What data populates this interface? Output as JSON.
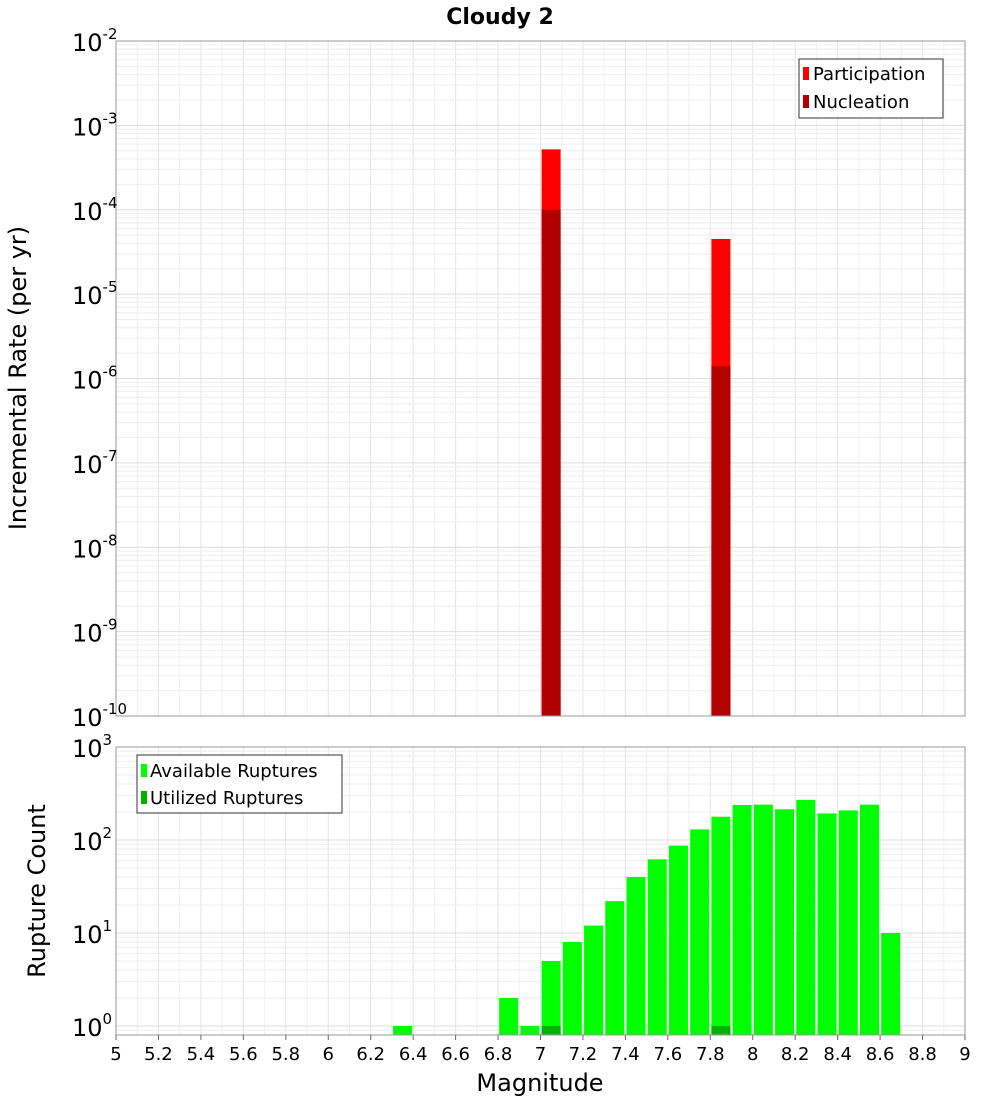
{
  "title": "Cloudy 2",
  "chart_data": [
    {
      "type": "bar",
      "panel": "top",
      "ylabel": "Incremental Rate (per yr)",
      "yscale": "log",
      "ylim": [
        1e-10,
        0.01
      ],
      "xlim": [
        5,
        9
      ],
      "grid": true,
      "legend_position": "top-right",
      "yticks": [
        {
          "base": "10",
          "exp": "-2",
          "value": 0.01
        },
        {
          "base": "10",
          "exp": "-3",
          "value": 0.001
        },
        {
          "base": "10",
          "exp": "-4",
          "value": 0.0001
        },
        {
          "base": "10",
          "exp": "-5",
          "value": 1e-05
        },
        {
          "base": "10",
          "exp": "-6",
          "value": 1e-06
        },
        {
          "base": "10",
          "exp": "-7",
          "value": 1e-07
        },
        {
          "base": "10",
          "exp": "-8",
          "value": 1e-08
        },
        {
          "base": "10",
          "exp": "-9",
          "value": 1e-09
        },
        {
          "base": "10",
          "exp": "-10",
          "value": 1e-10
        }
      ],
      "series": [
        {
          "name": "Participation",
          "color": "#ff0000",
          "points": [
            {
              "x": 7.05,
              "y": 0.00052
            },
            {
              "x": 7.85,
              "y": 4.5e-05
            }
          ]
        },
        {
          "name": "Nucleation",
          "color": "#b20000",
          "points": [
            {
              "x": 7.05,
              "y": 0.0001
            },
            {
              "x": 7.85,
              "y": 1.4e-06
            }
          ]
        }
      ]
    },
    {
      "type": "bar",
      "panel": "bottom",
      "ylabel": "Rupture Count",
      "xlabel": "Magnitude",
      "yscale": "log",
      "ylim": [
        0.8,
        1000
      ],
      "xlim": [
        5,
        9
      ],
      "grid": true,
      "legend_position": "top-left",
      "yticks": [
        {
          "base": "10",
          "exp": "3",
          "value": 1000
        },
        {
          "base": "10",
          "exp": "2",
          "value": 100
        },
        {
          "base": "10",
          "exp": "1",
          "value": 10
        },
        {
          "base": "10",
          "exp": "0",
          "value": 1
        }
      ],
      "xticks": [
        "5",
        "5.2",
        "5.4",
        "5.6",
        "5.8",
        "6",
        "6.2",
        "6.4",
        "6.6",
        "6.8",
        "7",
        "7.2",
        "7.4",
        "7.6",
        "7.8",
        "8",
        "8.2",
        "8.4",
        "8.6",
        "8.8",
        "9"
      ],
      "series": [
        {
          "name": "Available Ruptures",
          "color": "#00ff00",
          "points": [
            {
              "x": 6.35,
              "y": 1
            },
            {
              "x": 6.85,
              "y": 2
            },
            {
              "x": 6.95,
              "y": 1
            },
            {
              "x": 7.05,
              "y": 5
            },
            {
              "x": 7.15,
              "y": 8
            },
            {
              "x": 7.25,
              "y": 12
            },
            {
              "x": 7.35,
              "y": 22
            },
            {
              "x": 7.45,
              "y": 40
            },
            {
              "x": 7.55,
              "y": 62
            },
            {
              "x": 7.65,
              "y": 87
            },
            {
              "x": 7.75,
              "y": 130
            },
            {
              "x": 7.85,
              "y": 178
            },
            {
              "x": 7.95,
              "y": 238
            },
            {
              "x": 8.05,
              "y": 240
            },
            {
              "x": 8.15,
              "y": 214
            },
            {
              "x": 8.25,
              "y": 270
            },
            {
              "x": 8.35,
              "y": 193
            },
            {
              "x": 8.45,
              "y": 208
            },
            {
              "x": 8.55,
              "y": 240
            },
            {
              "x": 8.65,
              "y": 10
            }
          ]
        },
        {
          "name": "Utilized Ruptures",
          "color": "#00b200",
          "points": [
            {
              "x": 7.05,
              "y": 1
            },
            {
              "x": 7.85,
              "y": 1
            }
          ]
        }
      ]
    }
  ]
}
